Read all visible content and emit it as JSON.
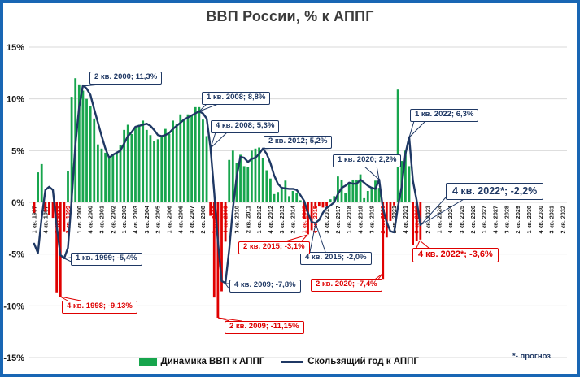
{
  "colors": {
    "frame": "#1866B4",
    "bar_positive": "#17A54D",
    "bar_negative": "#E00000",
    "line": "#1F3864",
    "navy": "#1F3864",
    "red": "#DE0000",
    "grid": "#D9D9D9",
    "axis_text": "#1A1A1A",
    "title": "#3B3B3B"
  },
  "chart_data": {
    "type": "combo",
    "title": "ВВП России, % к АППГ",
    "footnote": "*- прогноз",
    "y_axis": {
      "min": -15,
      "max": 15,
      "grid": true,
      "ticks": [
        {
          "label": "15%",
          "value": 15
        },
        {
          "label": "10%",
          "value": 10
        },
        {
          "label": "5%",
          "value": 5
        },
        {
          "label": "0%",
          "value": 0
        },
        {
          "label": "-5%",
          "value": -5
        },
        {
          "label": "-10%",
          "value": -10
        },
        {
          "label": "-15%",
          "value": -15
        }
      ]
    },
    "x_axis": {
      "start": "1 кв. 1997",
      "end": "2 кв. 2032",
      "tick_step_quarters": 3,
      "tick_labels": [
        {
          "label": "1 кв. 1997",
          "red": false
        },
        {
          "label": "4 кв. 1997",
          "red": false
        },
        {
          "label": "3 кв. 1998",
          "red": true
        },
        {
          "label": "2 кв. 1999",
          "red": true
        },
        {
          "label": "1 кв. 2000",
          "red": false
        },
        {
          "label": "4 кв. 2000",
          "red": false
        },
        {
          "label": "3 кв. 2001",
          "red": false
        },
        {
          "label": "2 кв. 2002",
          "red": false
        },
        {
          "label": "1 кв. 2003",
          "red": false
        },
        {
          "label": "4 кв. 2003",
          "red": false
        },
        {
          "label": "3 кв. 2004",
          "red": false
        },
        {
          "label": "2 кв. 2005",
          "red": false
        },
        {
          "label": "1 кв. 2006",
          "red": false
        },
        {
          "label": "4 кв. 2006",
          "red": false
        },
        {
          "label": "3 кв. 2007",
          "red": false
        },
        {
          "label": "2 кв. 2008",
          "red": false
        },
        {
          "label": "1 кв. 2009",
          "red": true
        },
        {
          "label": "4 кв. 2009",
          "red": true
        },
        {
          "label": "3 кв. 2010",
          "red": false
        },
        {
          "label": "2 кв. 2011",
          "red": false
        },
        {
          "label": "1 кв. 2012",
          "red": false
        },
        {
          "label": "4 кв. 2012",
          "red": false
        },
        {
          "label": "3 кв. 2013",
          "red": false
        },
        {
          "label": "2 кв. 2014",
          "red": false
        },
        {
          "label": "1 кв. 2015",
          "red": true
        },
        {
          "label": "4 кв. 2015",
          "red": true
        },
        {
          "label": "3 кв. 2016",
          "red": false
        },
        {
          "label": "2 кв. 2017",
          "red": false
        },
        {
          "label": "1 кв. 2018",
          "red": false
        },
        {
          "label": "4 кв. 2018",
          "red": false
        },
        {
          "label": "3 кв. 2019",
          "red": false
        },
        {
          "label": "2 кв. 2020",
          "red": true
        },
        {
          "label": "1 кв. 2021",
          "red": false
        },
        {
          "label": "4 кв. 2021",
          "red": false
        },
        {
          "label": "3 кв. 2022",
          "red": true
        },
        {
          "label": "2 кв. 2023",
          "red": false
        },
        {
          "label": "1 кв. 2024",
          "red": false
        },
        {
          "label": "4 кв. 2024",
          "red": false
        },
        {
          "label": "3 кв. 2025",
          "red": false
        },
        {
          "label": "2 кв. 2026",
          "red": false
        },
        {
          "label": "1 кв. 2027",
          "red": false
        },
        {
          "label": "4 кв. 2027",
          "red": false
        },
        {
          "label": "3 кв. 2028",
          "red": false
        },
        {
          "label": "2 кв. 2029",
          "red": false
        },
        {
          "label": "1 кв. 2030",
          "red": false
        },
        {
          "label": "4 кв. 2030",
          "red": false
        },
        {
          "label": "3 кв. 2031",
          "red": false
        },
        {
          "label": "2 кв. 2032",
          "red": false
        }
      ]
    },
    "bars": {
      "name": "Динамика ВВП к АППГ",
      "start": "1 кв. 1997",
      "end": "4 кв. 2022",
      "values": [
        -1.0,
        2.9,
        3.7,
        -0.9,
        -1.2,
        -1.5,
        -8.7,
        -9.13,
        -2.8,
        3.0,
        10.2,
        12.0,
        11.4,
        10.8,
        10.0,
        9.3,
        8.1,
        5.6,
        5.2,
        4.8,
        4.3,
        4.6,
        4.9,
        5.5,
        7.0,
        7.5,
        6.6,
        7.3,
        7.5,
        7.9,
        7.0,
        6.5,
        5.9,
        6.1,
        6.4,
        7.1,
        6.6,
        7.9,
        7.6,
        8.5,
        7.9,
        8.5,
        8.4,
        9.2,
        9.2,
        8.0,
        6.4,
        -1.3,
        -9.2,
        -11.15,
        -8.6,
        -3.8,
        4.1,
        5.0,
        3.8,
        4.6,
        3.5,
        3.4,
        5.0,
        5.2,
        5.3,
        4.3,
        3.1,
        2.3,
        0.8,
        1.0,
        1.5,
        2.1,
        0.6,
        1.1,
        0.9,
        0.2,
        -1.6,
        -3.1,
        -2.7,
        -0.6,
        -0.4,
        -0.5,
        -0.4,
        0.3,
        0.6,
        2.5,
        2.2,
        0.9,
        1.9,
        2.2,
        2.2,
        2.7,
        0.4,
        1.1,
        1.5,
        2.1,
        1.4,
        -7.4,
        -3.4,
        -1.8,
        -0.3,
        10.9,
        4.0,
        5.0,
        3.5,
        -4.1,
        -3.7,
        -3.6
      ]
    },
    "line": {
      "name": "Скользящий год к АППГ",
      "start": "1 кв. 1997",
      "end": "4 кв. 2022",
      "values": [
        -4.0,
        -4.9,
        -1.5,
        1.2,
        1.5,
        1.2,
        -2.3,
        -5.1,
        -5.4,
        -4.4,
        0.3,
        5.6,
        9.2,
        11.3,
        11.0,
        10.4,
        9.0,
        7.7,
        6.4,
        5.2,
        4.3,
        4.6,
        4.8,
        5.0,
        5.7,
        6.4,
        6.8,
        7.3,
        7.4,
        7.5,
        7.6,
        7.4,
        7.0,
        6.5,
        6.4,
        6.5,
        6.7,
        7.1,
        7.4,
        7.7,
        8.0,
        8.2,
        8.4,
        8.6,
        8.8,
        8.6,
        8.1,
        5.3,
        1.0,
        -3.8,
        -7.6,
        -7.8,
        -4.6,
        -0.6,
        2.5,
        4.4,
        4.3,
        3.9,
        4.2,
        4.3,
        4.7,
        5.2,
        4.7,
        3.8,
        2.6,
        1.8,
        1.4,
        1.35,
        1.3,
        1.3,
        1.2,
        0.7,
        0.15,
        -1.0,
        -1.9,
        -2.0,
        -1.7,
        -1.0,
        -0.5,
        -0.3,
        0.0,
        0.8,
        1.4,
        1.6,
        1.9,
        1.8,
        1.8,
        2.2,
        1.9,
        1.6,
        1.4,
        1.3,
        2.2,
        -0.6,
        -1.9,
        -2.8,
        -2.9,
        -0.4,
        1.5,
        4.7,
        6.3,
        2.1,
        0.2,
        -2.2
      ]
    },
    "annotations": [
      {
        "text": "2 кв. 2000; 11,3%",
        "series": "line",
        "color": "navy",
        "size": "normal",
        "box": [
          110,
          88
        ],
        "target": [
          102,
          106
        ],
        "leads": [
          [
            117,
            103
          ],
          [
            133,
            103
          ]
        ]
      },
      {
        "text": "1 кв. 2008; 8,8%",
        "series": "line",
        "color": "navy",
        "size": "normal",
        "box": [
          248,
          113
        ],
        "target": [
          245,
          137
        ],
        "leads": [
          [
            254,
            128
          ],
          [
            268,
            128
          ]
        ]
      },
      {
        "text": "4 кв. 2008; 5,3%",
        "series": "line",
        "color": "navy",
        "size": "normal",
        "box": [
          259,
          148
        ],
        "target": [
          259,
          182
        ],
        "leads": [
          [
            265,
            163
          ],
          [
            279,
            163
          ]
        ]
      },
      {
        "text": "2 кв. 2012; 5,2%",
        "series": "line",
        "color": "navy",
        "size": "normal",
        "box": [
          324,
          167
        ],
        "target": [
          323,
          183
        ],
        "leads": [
          [
            330,
            182
          ],
          [
            343,
            182
          ]
        ]
      },
      {
        "text": "1 кв. 2020; 2,2%",
        "series": "line",
        "color": "navy",
        "size": "normal",
        "box": [
          409,
          190
        ],
        "target": [
          466,
          221
        ],
        "leads": [
          [
            447,
            204
          ],
          [
            463,
            204
          ]
        ]
      },
      {
        "text": "1 кв. 2022; 6,3%",
        "series": "line",
        "color": "navy",
        "size": "normal",
        "box": [
          504,
          134
        ],
        "target": [
          503,
          169
        ],
        "leads": [
          [
            509,
            149
          ],
          [
            523,
            149
          ]
        ]
      },
      {
        "text": "4 кв. 2022*; -2,2%",
        "series": "line",
        "color": "navy",
        "size": "large",
        "box": [
          548,
          225
        ],
        "target": [
          517,
          277
        ],
        "leads": [
          [
            548,
            243
          ],
          [
            572,
            244
          ]
        ]
      },
      {
        "text": "1 кв. 1999; -5,4%",
        "series": "line",
        "color": "navy",
        "size": "normal",
        "box": [
          87,
          311
        ],
        "target": [
          79,
          318
        ],
        "leads": [
          [
            87,
            317
          ],
          [
            94,
            325
          ]
        ]
      },
      {
        "text": "4 кв. 2015; -2,0%",
        "series": "line",
        "color": "navy",
        "size": "normal",
        "box": [
          369,
          310
        ],
        "target": [
          388,
          275
        ],
        "leads": [
          [
            381,
            310
          ],
          [
            400,
            310
          ]
        ]
      },
      {
        "text": "4 кв. 2009; -7,8%",
        "series": "line",
        "color": "navy",
        "size": "normal",
        "box": [
          282,
          344
        ],
        "target": [
          277,
          349
        ],
        "leads": [
          [
            282,
            349
          ],
          [
            282,
            356
          ]
        ]
      },
      {
        "text": "4 кв. 1998; -9,13%",
        "series": "bars",
        "color": "red",
        "size": "normal",
        "box": [
          76,
          370
        ],
        "target": [
          74,
          365
        ],
        "leads": [
          [
            83,
            370
          ],
          [
            99,
            370
          ]
        ]
      },
      {
        "text": "2 кв. 2009; -11,15%",
        "series": "bars",
        "color": "red",
        "size": "normal",
        "box": [
          276,
          395
        ],
        "target": [
          268,
          391
        ],
        "leads": [
          [
            282,
            395
          ],
          [
            297,
            395
          ]
        ]
      },
      {
        "text": "2 кв. 2015; -3,1%",
        "series": "bars",
        "color": "red",
        "size": "normal",
        "box": [
          293,
          297
        ],
        "target": [
          378,
          289
        ],
        "leads": [
          [
            351,
            297
          ],
          [
            366,
            302
          ]
        ]
      },
      {
        "text": "2 кв. 2020; -7,4%",
        "series": "bars",
        "color": "red",
        "size": "normal",
        "box": [
          382,
          343
        ],
        "target": [
          470,
          337
        ],
        "leads": [
          [
            458,
            346
          ],
          [
            458,
            353
          ]
        ]
      },
      {
        "text": "4 кв. 2022*; -3,6%",
        "series": "bars",
        "color": "red",
        "size": "medium",
        "box": [
          507,
          305
        ],
        "target": [
          516,
          296
        ],
        "leads": [
          [
            512,
            305
          ],
          [
            527,
            305
          ]
        ]
      }
    ],
    "legend_position": "bottom-center"
  }
}
